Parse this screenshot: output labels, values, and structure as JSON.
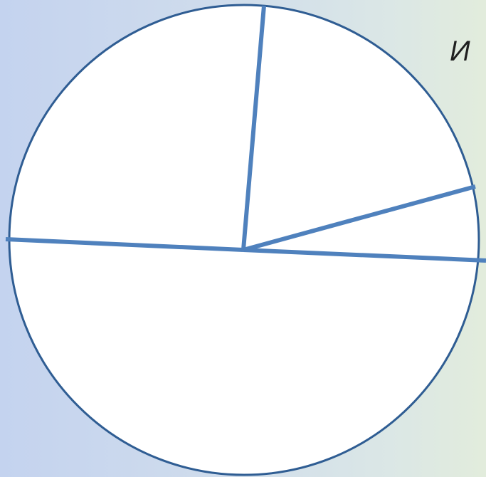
{
  "diagram": {
    "partial_text": "И",
    "colors": {
      "circle_fill": "#ffffff",
      "circle_stroke": "#2f5d93",
      "divider_stroke": "#4f81bd"
    },
    "sector_count": 4
  }
}
